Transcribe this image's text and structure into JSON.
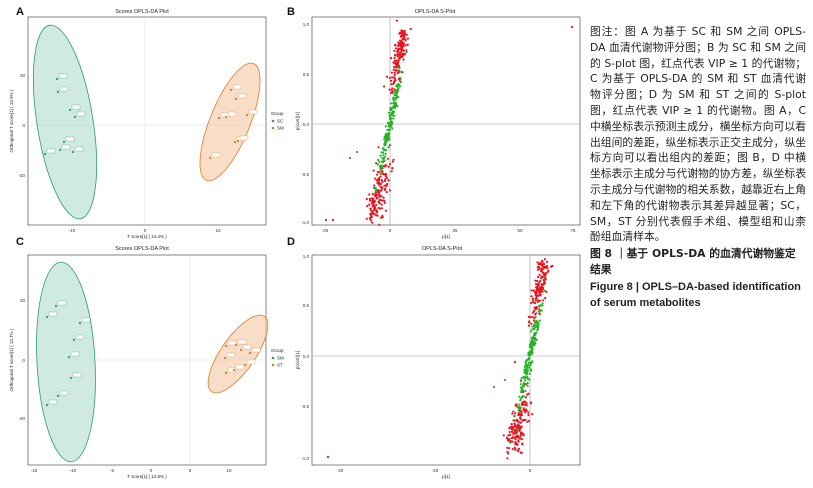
{
  "panels": {
    "A": {
      "letter": "A",
      "title": "Scores OPLS-DA Plot",
      "xlabel": "T score[1] ( 14.4% )",
      "ylabel": "Orthogonal T score[1] ( 12.9% )",
      "legend_title": "Group",
      "legend": [
        {
          "name": "SC",
          "color": "#2f9a6a"
        },
        {
          "name": "SM",
          "color": "#e07a2a"
        }
      ],
      "xticks": [
        "-10",
        "0",
        "10"
      ],
      "yticks": [
        "20",
        "0",
        "-20"
      ]
    },
    "B": {
      "letter": "B",
      "title": "OPLS-DA S-Plot",
      "xlabel": "p[1]",
      "ylabel": "p(corr)[1]",
      "xticks": [
        "-25",
        "0",
        "25",
        "50",
        "75",
        "100"
      ],
      "yticks": [
        "1.0",
        "0.5",
        "0.0",
        "-0.5",
        "-1.0"
      ]
    },
    "C": {
      "letter": "C",
      "title": "Scores OPLS-DA Plot",
      "xlabel": "T score[1] ( 12.8% )",
      "ylabel": "Orthogonal T score[1] ( 12.7% )",
      "legend_title": "Group",
      "legend": [
        {
          "name": "SM",
          "color": "#2f9a6a"
        },
        {
          "name": "ST",
          "color": "#e07a2a"
        }
      ],
      "xticks": [
        "-15",
        "-10",
        "-5",
        "0",
        "5",
        "10"
      ],
      "yticks": [
        "20",
        "0",
        "-20"
      ]
    },
    "D": {
      "letter": "D",
      "title": "OPLS-DA S-Plot",
      "xlabel": "p[1]",
      "ylabel": "p(corr)[1]",
      "xticks": [
        "-40",
        "-20",
        "0"
      ],
      "yticks": [
        "1.0",
        "0.5",
        "0.0",
        "-0.5",
        "-1.0"
      ]
    }
  },
  "colors": {
    "sig": "#e8141e",
    "nonsig": "#21b321",
    "group1": "#2f9a6a",
    "group2": "#e07a2a"
  },
  "caption": {
    "cn": "图注：图 A 为基于 SC 和 SM 之间 OPLS-DA 血清代谢物评分图；B 为 SC 和 SM 之间的 S-plot 图，红点代表 VIP ≥ 1 的代谢物；C 为基于 OPLS-DA 的 SM 和 ST 血清代谢物评分图；D 为 SM 和 ST 之间的 S-plot 图，红点代表 VIP ≥ 1 的代谢物。图 A，C 中横坐标表示预测主成分，横坐标方向可以看出组间的差距，纵坐标表示正交主成分，纵坐标方向可以看出组内的差距；图 B，D 中横坐标表示主成分与代谢物的协方差，纵坐标表示主成分与代谢物的相关系数，越靠近右上角和左下角的代谢物表示其差异越显著；SC，SM，ST 分别代表假手术组、模型组和山柰酚组血清样本。",
    "cn_title": "图 8 ｜基于 OPLS-DA 的血清代谢物鉴定结果",
    "en_title": "Figure 8 | OPLS–DA-based identification of serum metabolites"
  }
}
